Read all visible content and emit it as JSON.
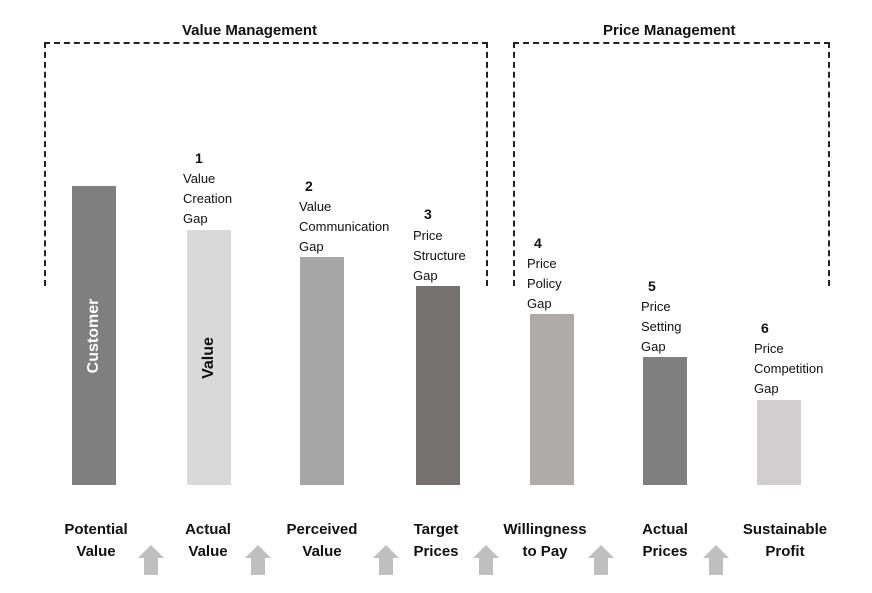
{
  "brackets": {
    "value": {
      "title": "Value Management"
    },
    "price": {
      "title": "Price Management"
    }
  },
  "bars": [
    {
      "category": "Potential\nValue",
      "color": "#7f7f7f",
      "vertical_label": "Customer",
      "label_color": "#ffffff",
      "gap_number": "",
      "gap_text": ""
    },
    {
      "category": "Actual\nValue",
      "color": "#d9d9d9",
      "vertical_label": "Value",
      "label_color": "#111111",
      "gap_number": "1",
      "gap_text": "Value\nCreation\nGap"
    },
    {
      "category": "Perceived\nValue",
      "color": "#a6a6a6",
      "vertical_label": "",
      "label_color": "",
      "gap_number": "2",
      "gap_text": "Value\nCommunication\nGap"
    },
    {
      "category": "Target\nPrices",
      "color": "#767171",
      "vertical_label": "",
      "label_color": "",
      "gap_number": "3",
      "gap_text": "Price\nStructure\nGap"
    },
    {
      "category": "Willingness\nto Pay",
      "color": "#afabab",
      "vertical_label": "",
      "label_color": "",
      "gap_number": "4",
      "gap_text": "Price\nPolicy\nGap"
    },
    {
      "category": "Actual\nPrices",
      "color": "#7f7f7f",
      "vertical_label": "",
      "label_color": "",
      "gap_number": "5",
      "gap_text": "Price\nSetting\nGap"
    },
    {
      "category": "Sustainable\nProfit",
      "color": "#d0cece",
      "vertical_label": "",
      "label_color": "",
      "gap_number": "6",
      "gap_text": "Price\nCompetition\nGap"
    }
  ],
  "arrow_color": "#bfbfbf",
  "arrow_count": 6
}
